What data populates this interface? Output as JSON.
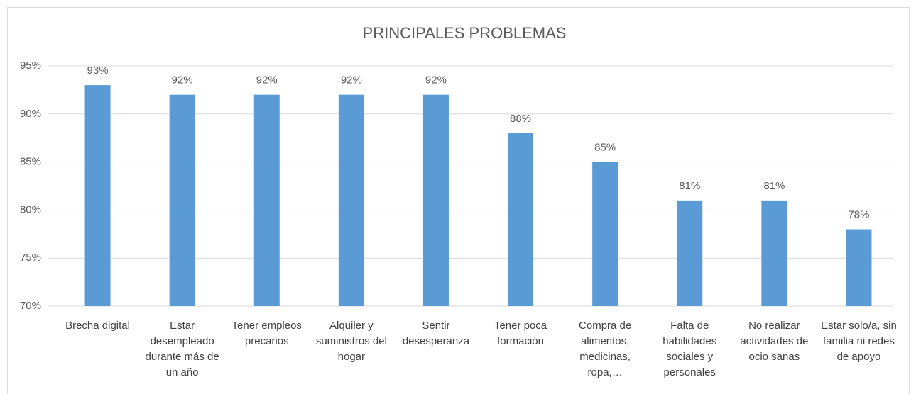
{
  "chart_data": {
    "type": "bar",
    "title": "PRINCIPALES PROBLEMAS",
    "categories": [
      "Brecha digital",
      "Estar desempleado durante más de un año",
      "Tener empleos precarios",
      "Alquiler y suministros del hogar",
      "Sentir desesperanza",
      "Tener poca formación",
      "Compra de alimentos, medicinas, ropa,…",
      "Falta de habilidades sociales y personales",
      "No realizar actividades de ocio sanas",
      "Estar solo/a, sin familia ni redes de apoyo"
    ],
    "values": [
      93,
      92,
      92,
      92,
      92,
      88,
      85,
      81,
      81,
      78
    ],
    "value_labels": [
      "93%",
      "92%",
      "92%",
      "92%",
      "92%",
      "88%",
      "85%",
      "81%",
      "81%",
      "78%"
    ],
    "color": "#5b9bd5",
    "ylim": [
      70,
      95
    ],
    "yticks": [
      {
        "value": 70,
        "label": "70%"
      },
      {
        "value": 75,
        "label": "75%"
      },
      {
        "value": 80,
        "label": "80%"
      },
      {
        "value": 85,
        "label": "85%"
      },
      {
        "value": 90,
        "label": "90%"
      },
      {
        "value": 95,
        "label": "95%"
      }
    ],
    "grid": true
  }
}
